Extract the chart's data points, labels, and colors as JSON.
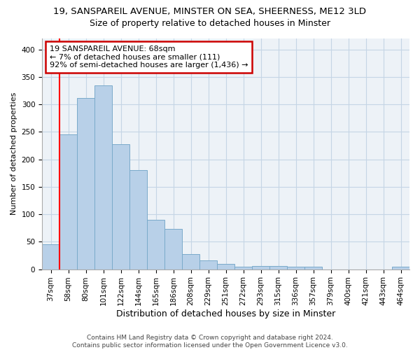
{
  "title1": "19, SANSPAREIL AVENUE, MINSTER ON SEA, SHEERNESS, ME12 3LD",
  "title2": "Size of property relative to detached houses in Minster",
  "xlabel": "Distribution of detached houses by size in Minster",
  "ylabel": "Number of detached properties",
  "bar_color": "#b8d0e8",
  "bar_edge_color": "#7aaaca",
  "categories": [
    "37sqm",
    "58sqm",
    "80sqm",
    "101sqm",
    "122sqm",
    "144sqm",
    "165sqm",
    "186sqm",
    "208sqm",
    "229sqm",
    "251sqm",
    "272sqm",
    "293sqm",
    "315sqm",
    "336sqm",
    "357sqm",
    "379sqm",
    "400sqm",
    "421sqm",
    "443sqm",
    "464sqm"
  ],
  "values": [
    45,
    246,
    312,
    335,
    227,
    181,
    90,
    74,
    27,
    16,
    10,
    5,
    6,
    6,
    5,
    4,
    0,
    0,
    0,
    0,
    4
  ],
  "ylim": [
    0,
    420
  ],
  "yticks": [
    0,
    50,
    100,
    150,
    200,
    250,
    300,
    350,
    400
  ],
  "red_line_bin_index": 1,
  "annotation_title": "19 SANSPAREIL AVENUE: 68sqm",
  "annotation_line1": "← 7% of detached houses are smaller (111)",
  "annotation_line2": "92% of semi-detached houses are larger (1,436) →",
  "annotation_box_color": "#ffffff",
  "annotation_border_color": "#cc0000",
  "footer1": "Contains HM Land Registry data © Crown copyright and database right 2024.",
  "footer2": "Contains public sector information licensed under the Open Government Licence v3.0.",
  "background_color": "#edf2f7",
  "grid_color": "#c5d5e5",
  "title1_fontsize": 9.5,
  "title2_fontsize": 9,
  "xlabel_fontsize": 9,
  "ylabel_fontsize": 8,
  "tick_fontsize": 7.5,
  "annotation_fontsize": 8,
  "footer_fontsize": 6.5
}
